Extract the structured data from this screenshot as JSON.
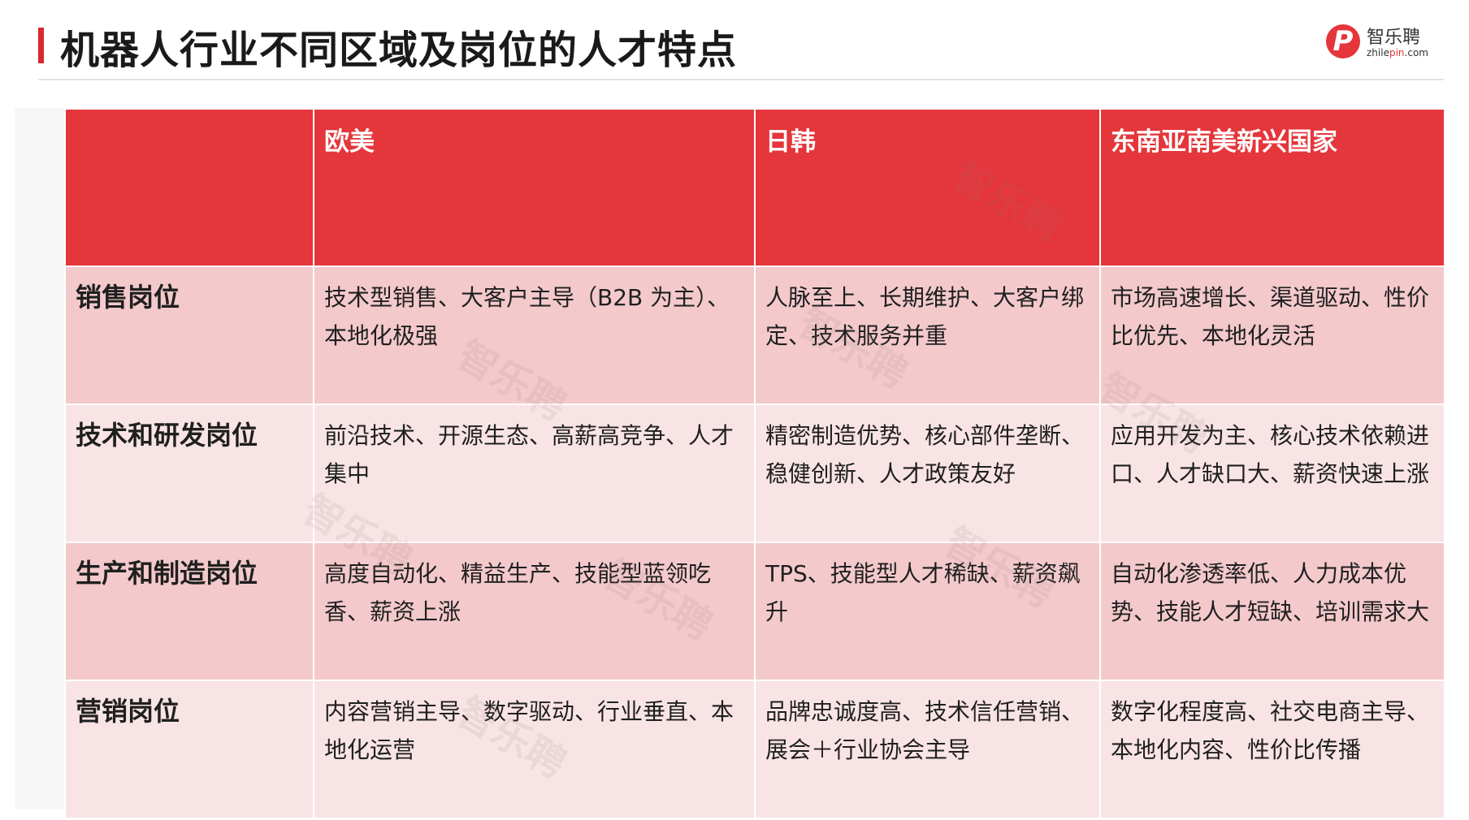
{
  "title": "机器人行业不同区域及岗位的人才特点",
  "logo": {
    "cn": "智乐聘",
    "en_prefix": "zhile",
    "en_accent": "pin",
    "en_suffix": ".com",
    "mark": "P"
  },
  "watermark": "智乐聘",
  "table": {
    "headers": [
      "",
      "欧美",
      "日韩",
      "东南亚南美新兴国家"
    ],
    "rows": [
      {
        "label": "销售岗位",
        "cells": [
          "技术型销售、大客户主导（B2B 为主）、本地化极强",
          "人脉至上、长期维护、大客户绑定、技术服务并重",
          "市场高速增长、渠道驱动、性价比优先、本地化灵活"
        ]
      },
      {
        "label": "技术和研发岗位",
        "cells": [
          "前沿技术、开源生态、高薪高竞争、人才集中",
          "精密制造优势、核心部件垄断、稳健创新、人才政策友好",
          "应用开发为主、核心技术依赖进口、人才缺口大、薪资快速上涨"
        ]
      },
      {
        "label": "生产和制造岗位",
        "cells": [
          "高度自动化、精益生产、技能型蓝领吃香、薪资上涨",
          "TPS、技能型人才稀缺、薪资飙升",
          "自动化渗透率低、人力成本优势、技能人才短缺、培训需求大"
        ]
      },
      {
        "label": "营销岗位",
        "cells": [
          "内容营销主导、数字驱动、行业垂直、本地化运营",
          "品牌忠诚度高、技术信任营销、展会＋行业协会主导",
          "数字化程度高、社交电商主导、本地化内容、性价比传播"
        ]
      }
    ]
  },
  "colors": {
    "accent": "#e4363b",
    "row_dark": "#f3c9cc",
    "row_light": "#f9e4e5"
  }
}
